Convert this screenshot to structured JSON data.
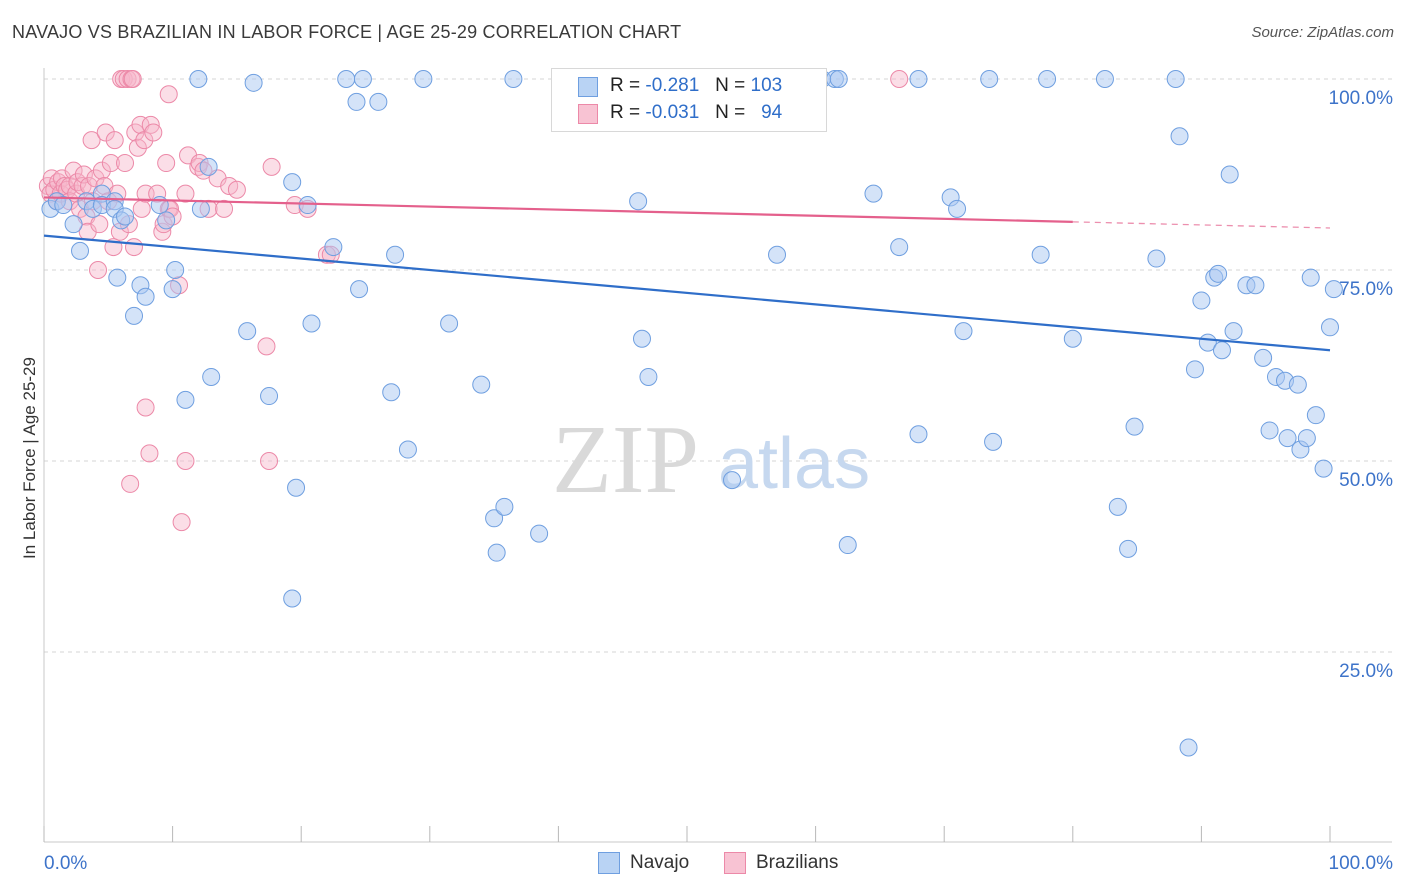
{
  "title": "NAVAJO VS BRAZILIAN IN LABOR FORCE | AGE 25-29 CORRELATION CHART",
  "source": "Source: ZipAtlas.com",
  "watermark": {
    "zip": "ZIP",
    "atlas": "atlas"
  },
  "legend": {
    "navajo": {
      "r_label": "R =",
      "r_value": "-0.281",
      "n_label": "N =",
      "n_value": "103"
    },
    "brazilians": {
      "r_label": "R =",
      "r_value": "-0.031",
      "n_label": "N =",
      "n_value": "94"
    }
  },
  "bottom_legend": {
    "navajo": "Navajo",
    "brazilians": "Brazilians"
  },
  "colors": {
    "navajo_fill": "#a9c8f2",
    "navajo_stroke": "#6f9fe0",
    "navajo_line": "#2f6ec9",
    "brazil_fill": "#f6b6c9",
    "brazil_stroke": "#ec89a8",
    "brazil_line": "#e4608c",
    "tick_label": "#3d73c9",
    "grid": "#d6d6d6"
  },
  "chart_data": {
    "type": "scatter",
    "title": "NAVAJO VS BRAZILIAN IN LABOR FORCE | AGE 25-29 CORRELATION CHART",
    "xlabel": "",
    "ylabel": "In Labor Force | Age 25-29",
    "xlim": [
      0,
      100
    ],
    "ylim": [
      0,
      105
    ],
    "x_tick_labels": [
      "0.0%",
      "100.0%"
    ],
    "y_ticks": [
      25,
      50,
      75,
      100
    ],
    "y_tick_labels": [
      "25.0%",
      "50.0%",
      "75.0%",
      "100.0%"
    ],
    "series": [
      {
        "name": "Navajo",
        "points": [
          [
            0.5,
            83
          ],
          [
            1,
            84
          ],
          [
            1.5,
            83.5
          ],
          [
            2.3,
            81
          ],
          [
            2.8,
            77.5
          ],
          [
            3.3,
            84
          ],
          [
            3.8,
            83
          ],
          [
            4.5,
            85
          ],
          [
            4.5,
            83.5
          ],
          [
            5.5,
            84
          ],
          [
            5.5,
            83
          ],
          [
            6,
            81.5
          ],
          [
            6.3,
            82
          ],
          [
            5.7,
            74
          ],
          [
            7,
            69
          ],
          [
            7.5,
            73
          ],
          [
            7.9,
            71.5
          ],
          [
            9,
            83.5
          ],
          [
            9.5,
            81.5
          ],
          [
            10,
            72.5
          ],
          [
            10.2,
            75
          ],
          [
            11,
            58
          ],
          [
            12,
            100
          ],
          [
            12.2,
            83
          ],
          [
            12.8,
            88.5
          ],
          [
            13,
            61
          ],
          [
            15.8,
            67
          ],
          [
            16.3,
            99.5
          ],
          [
            17.5,
            58.5
          ],
          [
            19.3,
            86.5
          ],
          [
            19.3,
            32
          ],
          [
            19.6,
            46.5
          ],
          [
            20.5,
            83.5
          ],
          [
            20.8,
            68
          ],
          [
            22.5,
            78
          ],
          [
            23.5,
            100
          ],
          [
            24.3,
            97
          ],
          [
            24.8,
            100
          ],
          [
            24.5,
            72.5
          ],
          [
            26,
            97
          ],
          [
            27,
            59
          ],
          [
            27.3,
            77
          ],
          [
            28.3,
            51.5
          ],
          [
            29.5,
            100
          ],
          [
            31.5,
            68
          ],
          [
            34,
            60
          ],
          [
            35,
            42.5
          ],
          [
            35.2,
            38
          ],
          [
            35.8,
            44
          ],
          [
            36.5,
            100
          ],
          [
            38.5,
            40.5
          ],
          [
            45.8,
            100
          ],
          [
            46.2,
            84
          ],
          [
            46.5,
            66
          ],
          [
            47,
            61
          ],
          [
            52,
            100
          ],
          [
            53.5,
            47.5
          ],
          [
            56,
            100
          ],
          [
            57,
            77
          ],
          [
            59.5,
            100
          ],
          [
            60.5,
            100
          ],
          [
            61.5,
            100
          ],
          [
            61.8,
            100
          ],
          [
            62.5,
            39
          ],
          [
            64.5,
            85
          ],
          [
            66.5,
            78
          ],
          [
            68,
            100
          ],
          [
            68,
            53.5
          ],
          [
            70.5,
            84.5
          ],
          [
            71,
            83
          ],
          [
            71.5,
            67
          ],
          [
            73.5,
            100
          ],
          [
            73.8,
            52.5
          ],
          [
            78,
            100
          ],
          [
            77.5,
            77
          ],
          [
            80,
            66
          ],
          [
            82.5,
            100
          ],
          [
            83.5,
            44
          ],
          [
            84.3,
            38.5
          ],
          [
            84.8,
            54.5
          ],
          [
            86.5,
            76.5
          ],
          [
            88,
            100
          ],
          [
            88.3,
            92.5
          ],
          [
            89,
            12.5
          ],
          [
            89.5,
            62
          ],
          [
            90,
            71
          ],
          [
            90.5,
            65.5
          ],
          [
            91,
            74
          ],
          [
            91.3,
            74.5
          ],
          [
            91.6,
            64.5
          ],
          [
            92.2,
            87.5
          ],
          [
            92.5,
            67
          ],
          [
            93.5,
            73
          ],
          [
            94.2,
            73
          ],
          [
            94.8,
            63.5
          ],
          [
            95.3,
            54
          ],
          [
            95.8,
            61
          ],
          [
            96.5,
            60.5
          ],
          [
            96.7,
            53
          ],
          [
            97.5,
            60
          ],
          [
            97.7,
            51.5
          ],
          [
            98.2,
            53
          ],
          [
            98.5,
            74
          ],
          [
            98.9,
            56
          ],
          [
            99.5,
            49
          ],
          [
            100,
            67.5
          ],
          [
            100.3,
            72.5
          ]
        ],
        "trend": {
          "x": [
            0,
            100
          ],
          "y": [
            79.5,
            64.5
          ],
          "dashed_from": null
        }
      },
      {
        "name": "Brazilians",
        "points": [
          [
            0.3,
            86
          ],
          [
            0.5,
            85
          ],
          [
            0.6,
            87
          ],
          [
            0.8,
            85.5
          ],
          [
            1,
            84
          ],
          [
            1.1,
            86.5
          ],
          [
            1.3,
            85
          ],
          [
            1.4,
            87
          ],
          [
            1.6,
            86
          ],
          [
            1.8,
            85.5
          ],
          [
            2,
            86
          ],
          [
            2,
            84
          ],
          [
            2.3,
            88
          ],
          [
            2.5,
            85
          ],
          [
            2.6,
            86.5
          ],
          [
            2.8,
            83
          ],
          [
            3,
            86
          ],
          [
            3.1,
            87.5
          ],
          [
            3.3,
            82
          ],
          [
            3.4,
            80
          ],
          [
            3.5,
            86
          ],
          [
            3.7,
            92
          ],
          [
            3.8,
            84
          ],
          [
            4,
            87
          ],
          [
            4.2,
            75
          ],
          [
            4.3,
            81
          ],
          [
            4.5,
            88
          ],
          [
            4.7,
            86
          ],
          [
            4.8,
            93
          ],
          [
            5,
            84
          ],
          [
            5.2,
            89
          ],
          [
            5.4,
            78
          ],
          [
            5.5,
            92
          ],
          [
            5.7,
            85
          ],
          [
            5.9,
            80
          ],
          [
            6,
            100
          ],
          [
            6.2,
            100
          ],
          [
            6.3,
            89
          ],
          [
            6.5,
            100
          ],
          [
            6.6,
            81
          ],
          [
            6.7,
            47
          ],
          [
            6.8,
            100
          ],
          [
            6.9,
            100
          ],
          [
            7,
            78
          ],
          [
            7.1,
            93
          ],
          [
            7.3,
            91
          ],
          [
            7.5,
            94
          ],
          [
            7.6,
            83
          ],
          [
            7.8,
            92
          ],
          [
            7.9,
            57
          ],
          [
            7.9,
            85
          ],
          [
            8.2,
            51
          ],
          [
            8.3,
            94
          ],
          [
            8.5,
            93
          ],
          [
            8.8,
            85
          ],
          [
            9.2,
            80
          ],
          [
            9.3,
            81
          ],
          [
            9.5,
            89
          ],
          [
            9.7,
            83
          ],
          [
            9.7,
            98
          ],
          [
            9.8,
            83
          ],
          [
            10,
            82
          ],
          [
            10.5,
            73
          ],
          [
            10.7,
            42
          ],
          [
            11,
            50
          ],
          [
            11,
            85
          ],
          [
            11.2,
            90
          ],
          [
            12,
            88.5
          ],
          [
            12.1,
            89
          ],
          [
            12.4,
            88
          ],
          [
            12.8,
            83
          ],
          [
            13.5,
            87
          ],
          [
            14,
            83
          ],
          [
            14.4,
            86
          ],
          [
            15,
            85.5
          ],
          [
            17.3,
            65
          ],
          [
            17.5,
            50
          ],
          [
            17.7,
            88.5
          ],
          [
            19.5,
            83.5
          ],
          [
            20.5,
            83
          ],
          [
            22,
            77
          ],
          [
            22.3,
            77
          ],
          [
            66.5,
            100
          ]
        ],
        "trend": {
          "x": [
            0,
            100
          ],
          "y": [
            84.5,
            80.5
          ],
          "dashed_from": 80
        }
      }
    ]
  }
}
